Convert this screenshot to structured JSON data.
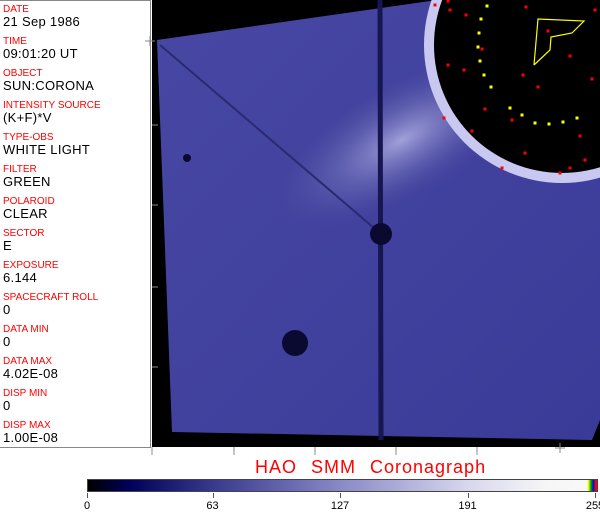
{
  "fields": [
    {
      "label": "DATE",
      "value": "21 Sep 1986"
    },
    {
      "label": "TIME",
      "value": "09:01:20 UT"
    },
    {
      "label": "OBJECT",
      "value": "SUN:CORONA"
    },
    {
      "label": "INTENSITY SOURCE",
      "value": "(K+F)*V"
    },
    {
      "label": "TYPE-OBS",
      "value": "WHITE LIGHT"
    },
    {
      "label": "FILTER",
      "value": "GREEN"
    },
    {
      "label": "POLAROID",
      "value": "CLEAR"
    },
    {
      "label": "SECTOR",
      "value": "E"
    },
    {
      "label": "EXPOSURE",
      "value": "6.144"
    },
    {
      "label": "SPACECRAFT ROLL",
      "value": "0"
    },
    {
      "label": "DATA MIN",
      "value": "0"
    },
    {
      "label": "DATA MAX",
      "value": "4.02E-08"
    },
    {
      "label": "DISP MIN",
      "value": "0"
    },
    {
      "label": "DISP MAX",
      "value": "1.00E-08"
    }
  ],
  "title": "HAO  SMM Coronagraph",
  "colorbar": {
    "ticks": [
      "0",
      "63",
      "127",
      "191",
      "255"
    ],
    "range": [
      0,
      255
    ],
    "colormap": "black-blue-white",
    "end_colors": [
      "#ffff00",
      "#00aa00",
      "#0000ff",
      "#ff0000"
    ]
  }
}
